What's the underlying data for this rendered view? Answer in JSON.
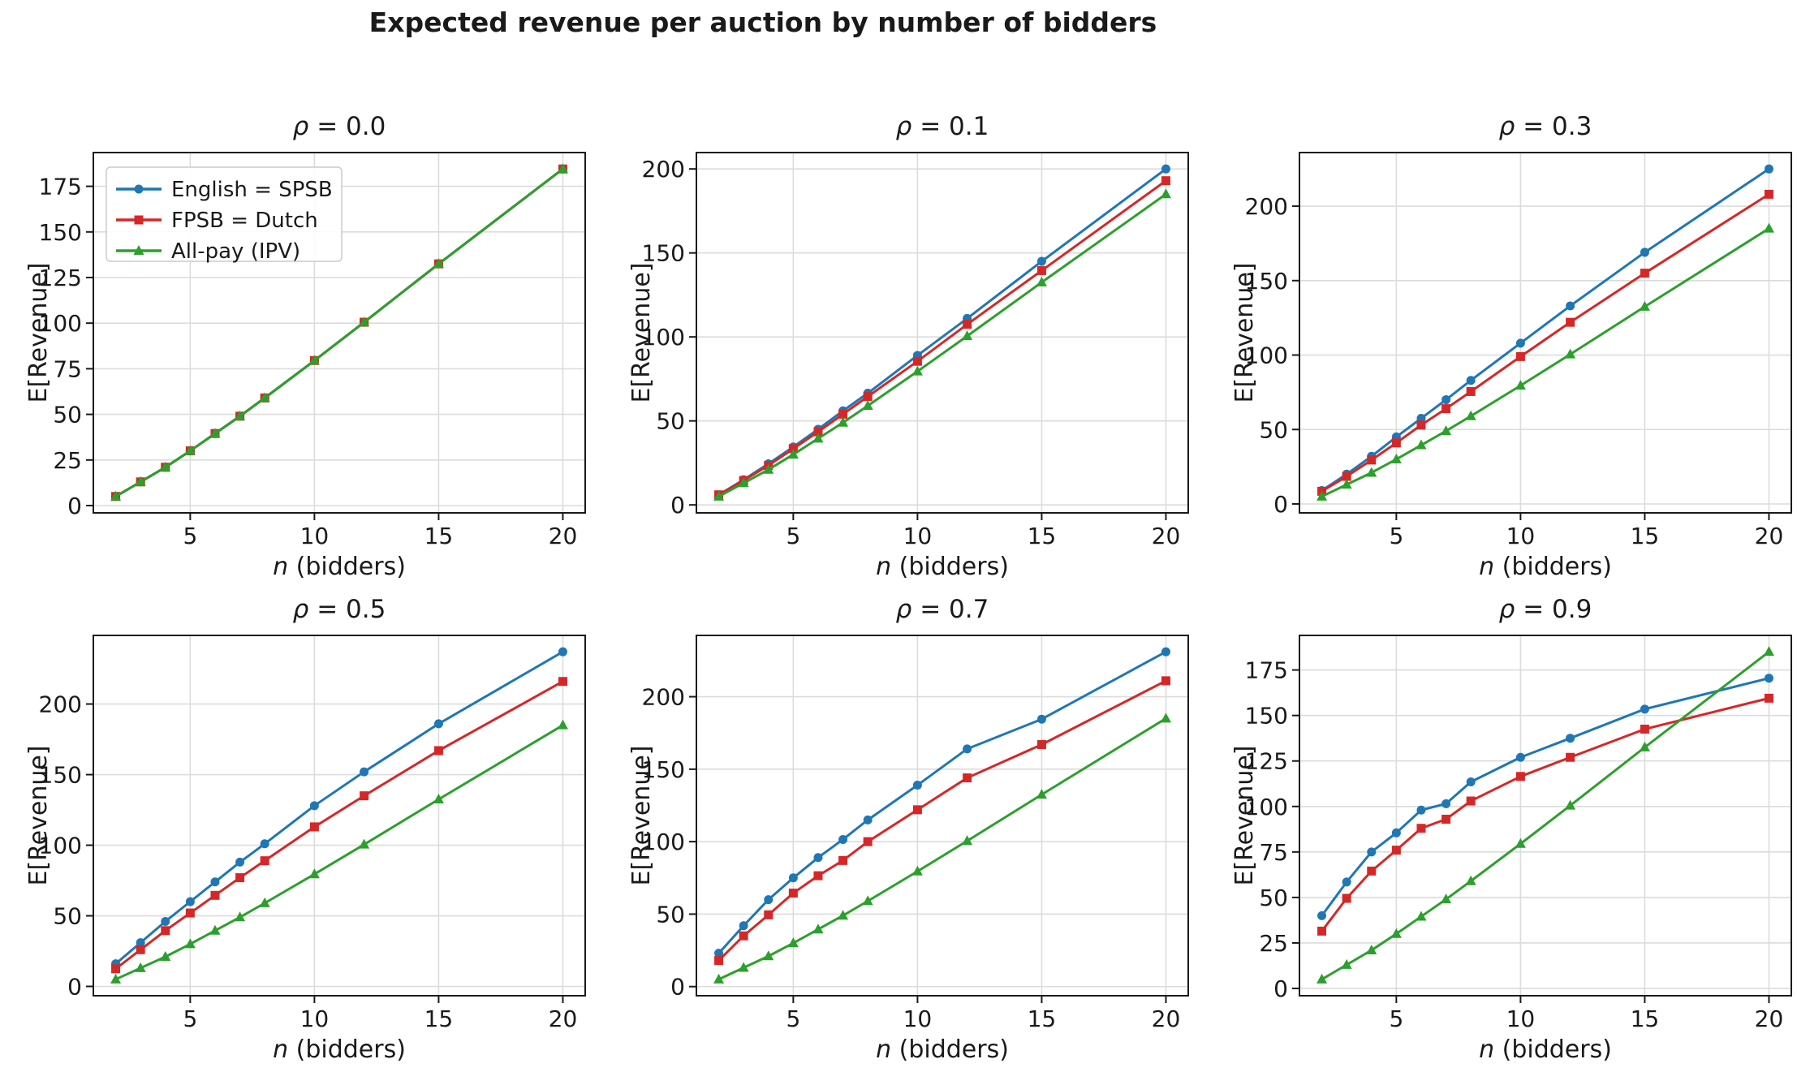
{
  "figure": {
    "suptitle": "Expected revenue per auction by number of bidders"
  },
  "chart_data": {
    "type": "line",
    "layout": "2x3 grid of subplots, shared style, grid on, boxed spines",
    "x": [
      2,
      3,
      4,
      5,
      6,
      7,
      8,
      10,
      12,
      15,
      20
    ],
    "xticks": [
      5,
      10,
      15,
      20
    ],
    "xlim": [
      1.1,
      20.9
    ],
    "x_label": {
      "text": "n (bidders)",
      "italic": "n",
      "rest": " (bidders)"
    },
    "y_label": "E[Revenue]",
    "legend": {
      "position": "upper left of first subplot only",
      "entries": [
        "English = SPSB",
        "FPSB = Dutch",
        "All-pay (IPV)"
      ]
    },
    "series_meta": [
      {
        "key": "english",
        "label": "English = SPSB",
        "color": "#1f77b4",
        "marker": "circle"
      },
      {
        "key": "fpsb",
        "label": "FPSB = Dutch",
        "color": "#d62728",
        "marker": "square"
      },
      {
        "key": "allpay",
        "label": "All-pay (IPV)",
        "color": "#2ca02c",
        "marker": "triangle"
      }
    ],
    "panels": [
      {
        "id": "rho-0.0",
        "rho": 0.0,
        "title": {
          "text": "ρ = 0.0",
          "italic": "ρ",
          "rest": " = 0.0"
        },
        "ylim": [
          -4,
          193.5
        ],
        "yticks": [
          0,
          25,
          50,
          75,
          100,
          125,
          150,
          175
        ],
        "show_legend": true,
        "series": {
          "english": [
            5,
            13,
            21,
            30,
            39.5,
            49,
            59,
            79.5,
            100.5,
            132.5,
            184.5
          ],
          "fpsb": [
            5,
            13,
            21,
            30,
            39.5,
            49,
            59,
            79.5,
            100.5,
            132.5,
            184.5
          ],
          "allpay": [
            5,
            13,
            21,
            30,
            39.5,
            49,
            59,
            79.5,
            100.5,
            132.5,
            184.5
          ]
        }
      },
      {
        "id": "rho-0.1",
        "rho": 0.1,
        "title": {
          "text": "ρ = 0.1",
          "italic": "ρ",
          "rest": " = 0.1"
        },
        "ylim": [
          -4.75,
          209.75
        ],
        "yticks": [
          0,
          50,
          100,
          150,
          200
        ],
        "show_legend": false,
        "series": {
          "english": [
            6,
            15,
            24.5,
            34.5,
            45,
            56,
            66.5,
            89,
            111,
            145,
            200
          ],
          "fpsb": [
            6,
            14.5,
            23.5,
            33.5,
            43.5,
            54,
            64.5,
            85.5,
            107.5,
            139.5,
            193
          ],
          "allpay": [
            5,
            13,
            21,
            30,
            39.5,
            49,
            59,
            79.5,
            100.5,
            132.5,
            185
          ]
        }
      },
      {
        "id": "rho-0.3",
        "rho": 0.3,
        "title": {
          "text": "ρ = 0.3",
          "italic": "ρ",
          "rest": " = 0.3"
        },
        "ylim": [
          -6,
          236
        ],
        "yticks": [
          0,
          50,
          100,
          150,
          200
        ],
        "show_legend": false,
        "series": {
          "english": [
            9,
            20,
            32,
            45,
            57.5,
            70,
            83,
            108,
            133,
            169,
            225
          ],
          "fpsb": [
            8.5,
            18.5,
            29.5,
            41,
            53,
            64,
            75.5,
            99,
            122,
            155,
            208
          ],
          "allpay": [
            5,
            13,
            21,
            30,
            39.5,
            49,
            59,
            79.5,
            100.5,
            132.5,
            185
          ]
        }
      },
      {
        "id": "rho-0.5",
        "rho": 0.5,
        "title": {
          "text": "ρ = 0.5",
          "italic": "ρ",
          "rest": " = 0.5"
        },
        "ylim": [
          -6.6,
          248.6
        ],
        "yticks": [
          0,
          50,
          100,
          150,
          200
        ],
        "show_legend": false,
        "series": {
          "english": [
            16,
            31,
            46,
            60,
            74,
            88,
            101,
            128,
            152,
            186,
            237
          ],
          "fpsb": [
            12.5,
            26,
            39.5,
            52,
            64.5,
            77,
            89,
            113,
            135,
            167,
            216
          ],
          "allpay": [
            5,
            13,
            21,
            30,
            39.5,
            49,
            59,
            79.5,
            100.5,
            132.5,
            185
          ]
        }
      },
      {
        "id": "rho-0.7",
        "rho": 0.7,
        "title": {
          "text": "ρ = 0.7",
          "italic": "ρ",
          "rest": " = 0.7"
        },
        "ylim": [
          -6.3,
          242.3
        ],
        "yticks": [
          0,
          50,
          100,
          150,
          200
        ],
        "show_legend": false,
        "series": {
          "english": [
            23,
            42,
            60,
            75,
            89,
            101.5,
            115,
            139,
            164,
            184.5,
            231
          ],
          "fpsb": [
            18,
            35,
            49.5,
            64.5,
            76.5,
            87,
            100,
            122,
            144,
            167,
            211
          ],
          "allpay": [
            5,
            13,
            21,
            30,
            39.5,
            49,
            59,
            79.5,
            100.5,
            132.5,
            185
          ]
        }
      },
      {
        "id": "rho-0.9",
        "rho": 0.9,
        "title": {
          "text": "ρ = 0.9",
          "italic": "ρ",
          "rest": " = 0.9"
        },
        "ylim": [
          -4,
          194
        ],
        "yticks": [
          0,
          25,
          50,
          75,
          100,
          125,
          150,
          175
        ],
        "show_legend": false,
        "series": {
          "english": [
            40,
            58.5,
            75,
            85.5,
            98,
            101.5,
            113.5,
            127,
            137.5,
            153.5,
            170.5
          ],
          "fpsb": [
            31.5,
            49.5,
            64.5,
            76,
            88,
            93,
            103,
            116.5,
            127,
            142.5,
            159.5
          ],
          "allpay": [
            5,
            13,
            21,
            30,
            39.5,
            49,
            59,
            79.5,
            100.5,
            132.5,
            185
          ]
        }
      }
    ]
  },
  "style": {
    "grid_color": "#dcdcdc",
    "spine_color": "#1a1a1a",
    "text_color": "#1a1a1a",
    "background": "#ffffff"
  }
}
